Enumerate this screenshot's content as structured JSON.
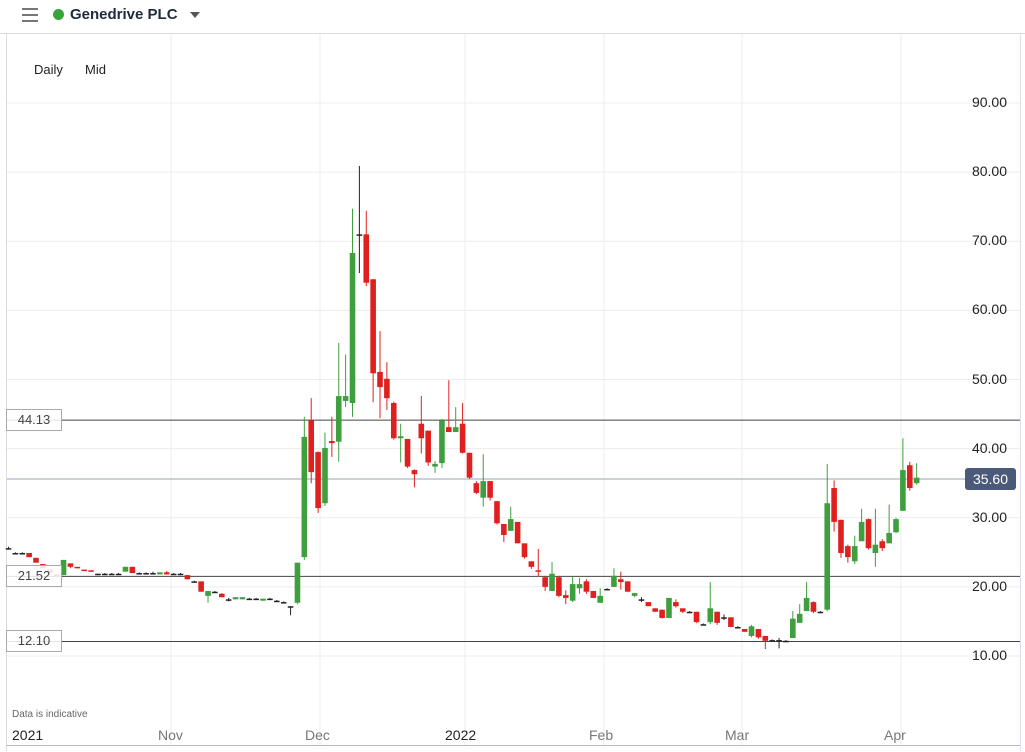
{
  "header": {
    "title": "Genedrive PLC",
    "status_color": "#3aa43a",
    "menu_icon": "hamburger-icon",
    "dropdown_icon": "caret-down-icon"
  },
  "options": {
    "interval": "Daily",
    "price_type": "Mid"
  },
  "footer_note": "Data is indicative",
  "colors": {
    "up": "#3f9f3f",
    "down": "#e0201f",
    "doji": "#222222",
    "current_badge": "#4a5a78"
  },
  "chart_data": {
    "type": "candlestick",
    "x_ticks": [
      "2021",
      "Nov",
      "Dec",
      "2022",
      "Feb",
      "Mar",
      "Apr"
    ],
    "y_ticks": [
      "10.00",
      "20.00",
      "30.00",
      "40.00",
      "50.00",
      "60.00",
      "70.00",
      "80.00",
      "90.00"
    ],
    "ylim": [
      0.5,
      99.8
    ],
    "grid": true,
    "levels": [
      {
        "value": 44.13,
        "label": "44.13"
      },
      {
        "value": 21.52,
        "label": "21.52"
      },
      {
        "value": 12.1,
        "label": "12.10"
      }
    ],
    "current_price": {
      "value": 35.6,
      "label": "35.60"
    },
    "candles_ohlc": [
      [
        25.6,
        25.8,
        25.4,
        25.6
      ],
      [
        24.9,
        25.0,
        24.8,
        24.9
      ],
      [
        24.9,
        25.0,
        24.8,
        24.9
      ],
      [
        24.9,
        24.9,
        24.3,
        24.3
      ],
      [
        24.2,
        24.2,
        23.5,
        23.5
      ],
      [
        23.3,
        23.3,
        22.7,
        22.7
      ],
      [
        22.5,
        22.5,
        22.0,
        22.0
      ],
      [
        21.8,
        21.8,
        21.4,
        21.5
      ],
      [
        21.7,
        23.9,
        21.7,
        23.9
      ],
      [
        23.4,
        23.4,
        22.7,
        22.9
      ],
      [
        22.9,
        22.9,
        22.7,
        22.8
      ],
      [
        22.5,
        22.5,
        22.3,
        22.3
      ],
      [
        22.4,
        22.4,
        22.2,
        22.2
      ],
      [
        21.9,
        21.9,
        21.8,
        21.9
      ],
      [
        21.9,
        22.0,
        21.8,
        21.9
      ],
      [
        21.9,
        22.0,
        21.8,
        21.9
      ],
      [
        21.9,
        22.0,
        21.8,
        21.9
      ],
      [
        22.2,
        22.9,
        22.2,
        22.9
      ],
      [
        22.9,
        22.9,
        22.0,
        22.0
      ],
      [
        22.0,
        22.1,
        21.9,
        22.0
      ],
      [
        22.0,
        22.1,
        21.9,
        22.0
      ],
      [
        22.0,
        22.2,
        21.8,
        22.0
      ],
      [
        21.8,
        22.1,
        21.8,
        22.1
      ],
      [
        22.1,
        22.3,
        21.8,
        21.8
      ],
      [
        21.9,
        22.0,
        21.8,
        21.9
      ],
      [
        21.9,
        22.0,
        21.8,
        21.9
      ],
      [
        21.7,
        21.7,
        21.1,
        21.1
      ],
      [
        20.8,
        20.9,
        20.7,
        20.8
      ],
      [
        20.8,
        20.8,
        19.3,
        19.3
      ],
      [
        18.7,
        19.4,
        17.7,
        19.4
      ],
      [
        19.3,
        19.4,
        19.2,
        19.3
      ],
      [
        19.0,
        19.1,
        18.5,
        18.5
      ],
      [
        18.2,
        18.4,
        17.9,
        18.2
      ],
      [
        18.2,
        18.5,
        18.2,
        18.5
      ],
      [
        18.2,
        18.5,
        18.2,
        18.5
      ],
      [
        18.3,
        18.4,
        18.2,
        18.3
      ],
      [
        18.3,
        18.4,
        18.2,
        18.3
      ],
      [
        18.0,
        18.3,
        18.0,
        18.3
      ],
      [
        18.3,
        18.4,
        18.2,
        18.3
      ],
      [
        18.0,
        18.1,
        17.9,
        18.0
      ],
      [
        17.8,
        17.9,
        17.7,
        17.8
      ],
      [
        17.2,
        17.2,
        15.9,
        17.2
      ],
      [
        17.7,
        23.5,
        17.5,
        23.5
      ],
      [
        24.3,
        44.6,
        23.9,
        41.7
      ],
      [
        44.1,
        47.3,
        35.0,
        36.6
      ],
      [
        39.5,
        39.6,
        30.7,
        31.4
      ],
      [
        32.1,
        42.3,
        31.7,
        40.1
      ],
      [
        41.1,
        44.6,
        38.8,
        40.8
      ],
      [
        41.0,
        55.3,
        38.1,
        47.6
      ],
      [
        46.9,
        53.6,
        46.0,
        47.6
      ],
      [
        46.6,
        74.7,
        44.6,
        68.3
      ],
      [
        71.0,
        80.9,
        65.4,
        71.0
      ],
      [
        71.0,
        74.4,
        63.5,
        64.0
      ],
      [
        64.5,
        64.5,
        46.7,
        50.9
      ],
      [
        51.1,
        57.0,
        44.4,
        48.9
      ],
      [
        50.1,
        52.5,
        45.6,
        47.3
      ],
      [
        46.6,
        46.8,
        41.3,
        41.5
      ],
      [
        41.5,
        43.6,
        38.0,
        41.8
      ],
      [
        41.4,
        41.4,
        37.2,
        37.4
      ],
      [
        36.9,
        37.0,
        34.4,
        36.3
      ],
      [
        43.6,
        47.6,
        39.3,
        41.5
      ],
      [
        42.6,
        42.6,
        37.5,
        38.0
      ],
      [
        37.4,
        38.2,
        36.5,
        37.8
      ],
      [
        37.9,
        44.3,
        37.2,
        44.1
      ],
      [
        43.1,
        49.9,
        42.4,
        42.4
      ],
      [
        42.4,
        46.0,
        42.4,
        43.1
      ],
      [
        43.6,
        46.6,
        39.3,
        39.4
      ],
      [
        39.4,
        39.4,
        35.6,
        35.8
      ],
      [
        35.0,
        35.3,
        33.4,
        33.6
      ],
      [
        32.9,
        39.2,
        31.6,
        35.3
      ],
      [
        35.3,
        35.3,
        32.5,
        32.9
      ],
      [
        32.4,
        32.4,
        29.0,
        29.2
      ],
      [
        29.1,
        29.1,
        26.5,
        27.5
      ],
      [
        28.1,
        31.6,
        28.1,
        29.8
      ],
      [
        29.4,
        29.4,
        26.3,
        26.3
      ],
      [
        26.3,
        26.3,
        24.1,
        24.3
      ],
      [
        23.7,
        23.7,
        22.6,
        22.9
      ],
      [
        22.4,
        25.5,
        21.5,
        22.2
      ],
      [
        21.4,
        21.6,
        19.4,
        20.0
      ],
      [
        19.4,
        23.6,
        19.4,
        21.9
      ],
      [
        21.4,
        21.6,
        18.5,
        18.7
      ],
      [
        18.8,
        19.5,
        17.5,
        18.4
      ],
      [
        18.0,
        21.5,
        17.8,
        20.4
      ],
      [
        19.8,
        21.3,
        19.0,
        20.4
      ],
      [
        20.8,
        21.1,
        19.0,
        19.3
      ],
      [
        19.4,
        19.4,
        18.4,
        18.4
      ],
      [
        17.7,
        19.8,
        17.7,
        18.7
      ],
      [
        19.7,
        19.8,
        19.6,
        19.7
      ],
      [
        20.0,
        22.7,
        20.0,
        21.6
      ],
      [
        21.1,
        22.2,
        19.6,
        20.7
      ],
      [
        20.8,
        20.8,
        19.3,
        19.3
      ],
      [
        18.7,
        19.1,
        18.5,
        19.1
      ],
      [
        18.2,
        18.5,
        17.8,
        18.2
      ],
      [
        17.8,
        17.8,
        17.2,
        17.2
      ],
      [
        16.9,
        16.9,
        16.4,
        16.4
      ],
      [
        16.7,
        16.7,
        15.4,
        15.5
      ],
      [
        15.5,
        18.4,
        15.5,
        18.4
      ],
      [
        17.8,
        18.2,
        17.0,
        17.2
      ],
      [
        16.9,
        16.9,
        16.2,
        16.4
      ],
      [
        16.4,
        16.5,
        16.3,
        16.4
      ],
      [
        16.4,
        16.4,
        14.8,
        14.9
      ],
      [
        14.6,
        14.7,
        14.5,
        14.6
      ],
      [
        14.9,
        20.7,
        14.6,
        16.9
      ],
      [
        16.4,
        16.4,
        14.5,
        14.8
      ],
      [
        15.6,
        16.0,
        15.2,
        15.6
      ],
      [
        15.6,
        15.6,
        14.2,
        14.2
      ],
      [
        14.2,
        14.3,
        14.1,
        14.2
      ],
      [
        13.9,
        13.9,
        13.5,
        13.5
      ],
      [
        12.9,
        14.5,
        12.7,
        14.3
      ],
      [
        13.9,
        13.9,
        12.5,
        12.7
      ],
      [
        12.9,
        12.9,
        11.0,
        12.2
      ],
      [
        12.3,
        12.4,
        12.2,
        12.3
      ],
      [
        12.3,
        12.6,
        11.1,
        12.3
      ],
      [
        12.2,
        12.3,
        12.1,
        12.2
      ],
      [
        12.6,
        16.5,
        12.6,
        15.4
      ],
      [
        14.8,
        17.5,
        14.8,
        16.1
      ],
      [
        16.5,
        20.7,
        16.5,
        18.4
      ],
      [
        17.8,
        17.9,
        16.2,
        16.4
      ],
      [
        16.4,
        16.5,
        16.3,
        16.4
      ],
      [
        16.7,
        37.8,
        16.5,
        32.1
      ],
      [
        34.3,
        35.4,
        28.0,
        29.4
      ],
      [
        29.7,
        29.7,
        24.2,
        24.9
      ],
      [
        25.9,
        26.1,
        23.5,
        24.3
      ],
      [
        23.7,
        27.4,
        23.3,
        25.9
      ],
      [
        26.6,
        31.3,
        26.6,
        29.4
      ],
      [
        29.8,
        29.9,
        25.4,
        25.6
      ],
      [
        24.9,
        31.3,
        22.9,
        26.1
      ],
      [
        26.6,
        26.9,
        25.2,
        25.6
      ],
      [
        26.3,
        31.9,
        26.3,
        27.8
      ],
      [
        27.9,
        30.0,
        27.8,
        29.8
      ],
      [
        31.0,
        41.5,
        31.0,
        36.9
      ],
      [
        37.6,
        38.1,
        33.9,
        34.3
      ],
      [
        35.0,
        37.9,
        34.8,
        35.8
      ]
    ]
  }
}
